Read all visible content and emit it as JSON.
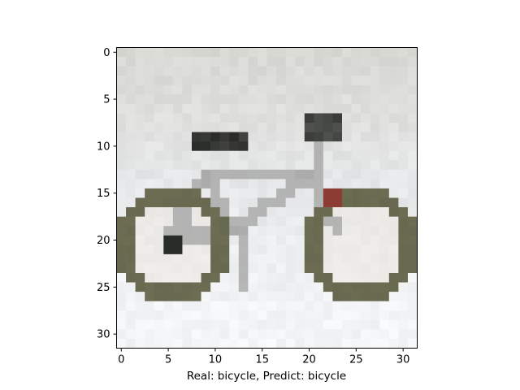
{
  "chart_data": {
    "type": "image",
    "xlabel": "Real: bicycle, Predict: bicycle",
    "ylabel": "",
    "title": "",
    "xlim": [
      -0.5,
      31.5
    ],
    "ylim": [
      31.5,
      -0.5
    ],
    "xticks": [
      0,
      5,
      10,
      15,
      20,
      25,
      30
    ],
    "yticks": [
      0,
      5,
      10,
      15,
      20,
      25,
      30
    ],
    "grid": false,
    "image_size": [
      32,
      32
    ],
    "image_content": "pixelated photo of a bicycle on a light grey background",
    "background_color": "#dcddd9",
    "wheel_color": "#66684f",
    "frame_color": "#aaaaaa"
  }
}
